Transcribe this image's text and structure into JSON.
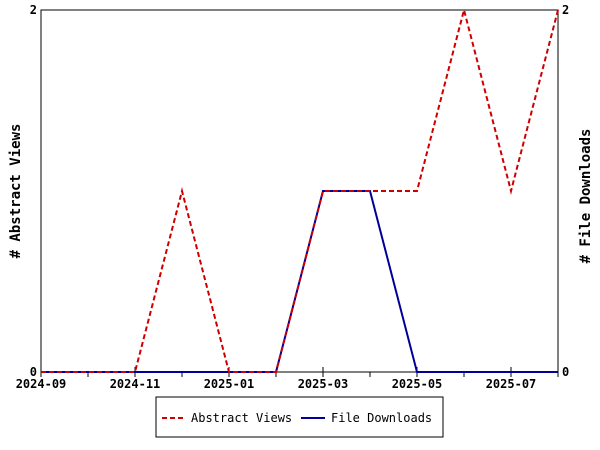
{
  "chart_data": {
    "type": "line",
    "title": "",
    "x": [
      "2024-09",
      "2024-10",
      "2024-11",
      "2024-12",
      "2025-01",
      "2025-02",
      "2025-03",
      "2025-04",
      "2025-05",
      "2025-06",
      "2025-07",
      "2025-08"
    ],
    "x_tick_labels": [
      "2024-09",
      "2024-11",
      "2025-01",
      "2025-03",
      "2025-05",
      "2025-07"
    ],
    "y_left": {
      "label": "# Abstract Views",
      "ticks": [
        "0",
        "2"
      ],
      "lim": [
        0,
        2
      ]
    },
    "y_right": {
      "label": "# File Downloads",
      "ticks": [
        "0",
        "2"
      ],
      "lim": [
        0,
        2
      ]
    },
    "series": [
      {
        "name": "Abstract Views",
        "color": "#cc0000",
        "style": "dashed",
        "axis": "left",
        "values": [
          0,
          0,
          0,
          1,
          0,
          0,
          1,
          1,
          1,
          2,
          1,
          2
        ]
      },
      {
        "name": "File Downloads",
        "color": "#000099",
        "style": "solid",
        "axis": "right",
        "values": [
          0,
          0,
          0,
          0,
          0,
          0,
          1,
          1,
          0,
          0,
          0,
          0
        ]
      }
    ],
    "grid": false,
    "legend_position": "bottom"
  }
}
